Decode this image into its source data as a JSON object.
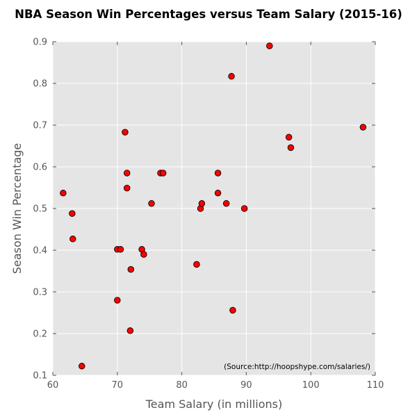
{
  "chart_data": {
    "type": "scatter",
    "title": "NBA Season Win Percentages versus Team Salary (2015-16)",
    "xlabel": "Team Salary (in millions)",
    "ylabel": "Season Win Percentage",
    "xlim": [
      60,
      110
    ],
    "ylim": [
      0.1,
      0.9
    ],
    "xticks": [
      "60",
      "70",
      "80",
      "90",
      "100",
      "110"
    ],
    "yticks": [
      "0.1",
      "0.2",
      "0.3",
      "0.4",
      "0.5",
      "0.6",
      "0.7",
      "0.8",
      "0.9"
    ],
    "grid": true,
    "marker_color": "#ff0000",
    "marker_edge_color": "#000000",
    "background_color": "#e5e5e5",
    "annotation": "(Source:http://hoopshype.com/salaries/)",
    "points": [
      {
        "x": 61.6,
        "y": 0.537
      },
      {
        "x": 63.0,
        "y": 0.488
      },
      {
        "x": 63.1,
        "y": 0.427
      },
      {
        "x": 64.5,
        "y": 0.122
      },
      {
        "x": 70.0,
        "y": 0.402
      },
      {
        "x": 70.0,
        "y": 0.28
      },
      {
        "x": 70.5,
        "y": 0.402
      },
      {
        "x": 71.2,
        "y": 0.683
      },
      {
        "x": 71.5,
        "y": 0.585
      },
      {
        "x": 71.5,
        "y": 0.549
      },
      {
        "x": 72.0,
        "y": 0.207
      },
      {
        "x": 72.1,
        "y": 0.354
      },
      {
        "x": 73.8,
        "y": 0.402
      },
      {
        "x": 74.1,
        "y": 0.39
      },
      {
        "x": 75.3,
        "y": 0.512
      },
      {
        "x": 76.7,
        "y": 0.585
      },
      {
        "x": 77.1,
        "y": 0.585
      },
      {
        "x": 82.3,
        "y": 0.366
      },
      {
        "x": 82.9,
        "y": 0.5
      },
      {
        "x": 83.1,
        "y": 0.512
      },
      {
        "x": 85.6,
        "y": 0.585
      },
      {
        "x": 85.6,
        "y": 0.537
      },
      {
        "x": 86.9,
        "y": 0.512
      },
      {
        "x": 87.7,
        "y": 0.817
      },
      {
        "x": 87.9,
        "y": 0.256
      },
      {
        "x": 89.7,
        "y": 0.5
      },
      {
        "x": 93.6,
        "y": 0.89
      },
      {
        "x": 96.6,
        "y": 0.671
      },
      {
        "x": 96.9,
        "y": 0.646
      },
      {
        "x": 108.1,
        "y": 0.695
      }
    ]
  }
}
